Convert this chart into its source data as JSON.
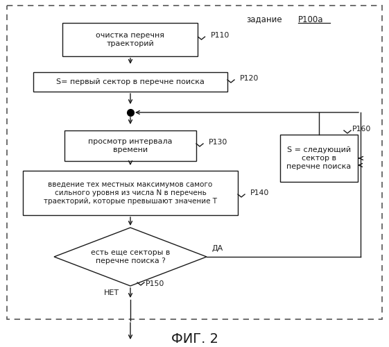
{
  "title": "ФИГ. 2",
  "label_zadanie": "задание",
  "label_p100a": "P100а",
  "box1_text": "очистка перечня\nтраекторий",
  "box1_label": "P110",
  "box2_text": "S= первый сектор в перечне поиска",
  "box2_label": "P120",
  "box3_text": "просмотр интервала\nвремени",
  "box3_label": "P130",
  "box4_text": "введение тех местных максимумов самого\nсильного уровня из числа N в перечень\nтраекторий, которые превышают значение T",
  "box4_label": "P140",
  "diamond_text": "есть еще секторы в\nперечне поиска ?",
  "diamond_yes": "ДА",
  "diamond_no": "НЕТ",
  "diamond_label": "P150",
  "box5_text": "S = следующий\nсектор в\nперечне поиска",
  "box5_label": "P160",
  "bg_color": "#ffffff",
  "box_color": "#ffffff",
  "border_color": "#1a1a1a",
  "text_color": "#1a1a1a",
  "dash_border_color": "#555555"
}
